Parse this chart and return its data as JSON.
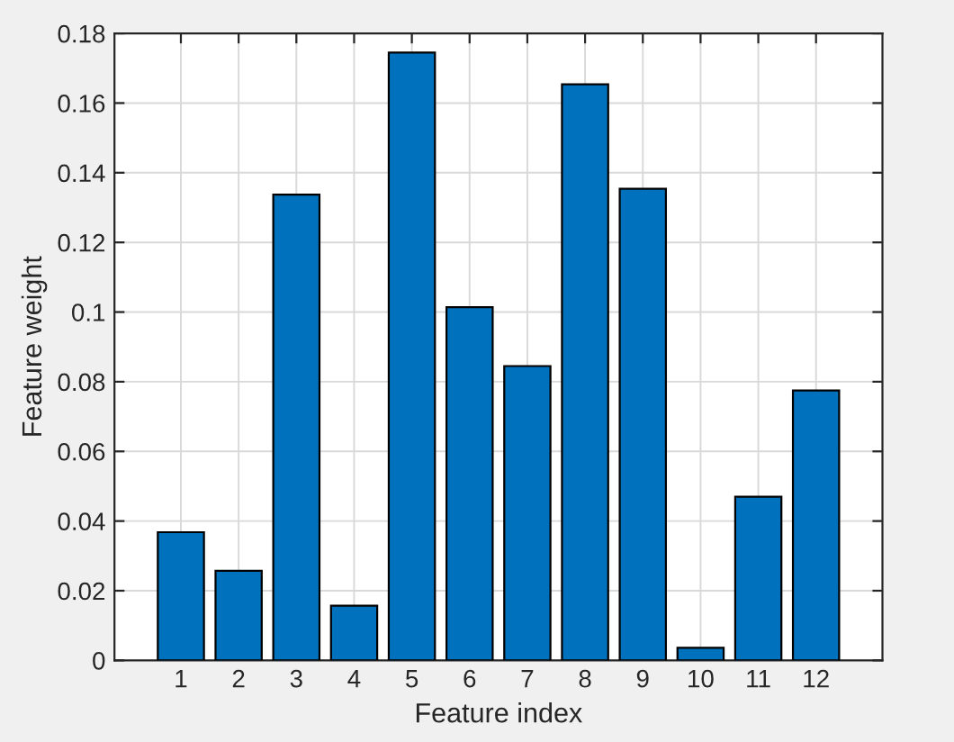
{
  "chart_data": {
    "type": "bar",
    "xlabel": "Feature index",
    "ylabel": "Feature weight",
    "categories": [
      "1",
      "2",
      "3",
      "4",
      "5",
      "6",
      "7",
      "8",
      "9",
      "10",
      "11",
      "12"
    ],
    "values": [
      0.0368,
      0.0257,
      0.1337,
      0.0157,
      0.1745,
      0.1014,
      0.0845,
      0.1654,
      0.1354,
      0.0036,
      0.047,
      0.0775
    ],
    "color": "#0072bd",
    "ylim": [
      0,
      0.18
    ],
    "yticks": [
      0,
      0.02,
      0.04,
      0.06,
      0.08,
      0.1,
      0.12,
      0.14,
      0.16,
      0.18
    ],
    "grid": true
  }
}
